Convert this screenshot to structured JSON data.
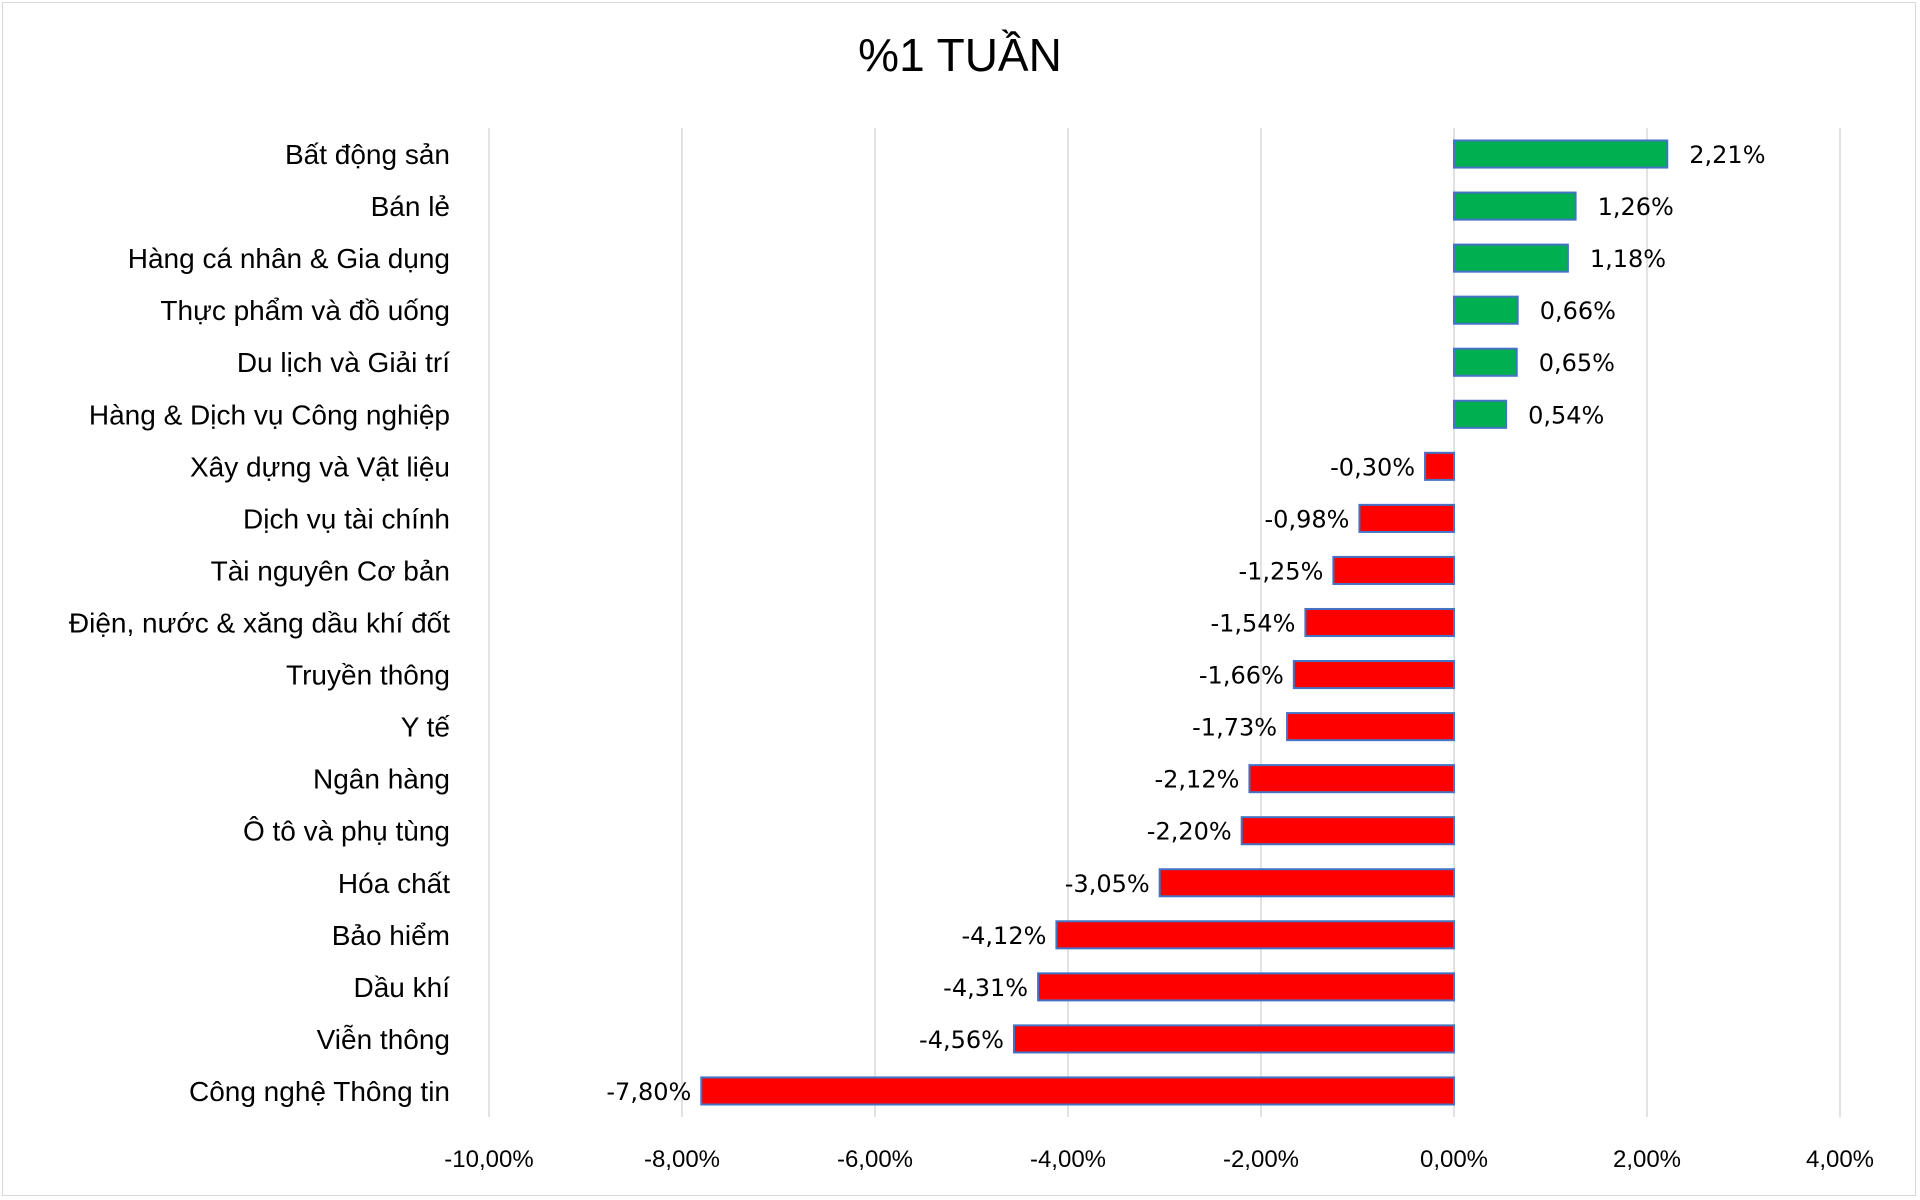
{
  "chart_data": {
    "type": "bar",
    "orientation": "horizontal",
    "title": "%1 TUẦN",
    "categories": [
      "Bất động sản",
      "Bán lẻ",
      "Hàng cá nhân & Gia dụng",
      "Thực phẩm và đồ uống",
      "Du lịch và Giải trí",
      "Hàng & Dịch vụ Công nghiệp",
      "Xây dựng và Vật liệu",
      "Dịch vụ tài chính",
      "Tài nguyên Cơ bản",
      "Điện, nước & xăng dầu khí đốt",
      "Truyền thông",
      "Y tế",
      "Ngân hàng",
      "Ô tô và phụ tùng",
      "Hóa chất",
      "Bảo hiểm",
      "Dầu khí",
      "Viễn thông",
      "Công nghệ Thông tin"
    ],
    "values": [
      2.21,
      1.26,
      1.18,
      0.66,
      0.65,
      0.54,
      -0.3,
      -0.98,
      -1.25,
      -1.54,
      -1.66,
      -1.73,
      -2.12,
      -2.2,
      -3.05,
      -4.12,
      -4.31,
      -4.56,
      -7.8
    ],
    "value_labels": [
      "2,21%",
      "1,26%",
      "1,18%",
      "0,66%",
      "0,65%",
      "0,54%",
      "-0,30%",
      "-0,98%",
      "-1,25%",
      "-1,54%",
      "-1,66%",
      "-1,73%",
      "-2,12%",
      "-2,20%",
      "-3,05%",
      "-4,12%",
      "-4,31%",
      "-4,56%",
      "-7,80%"
    ],
    "xlim": [
      -10,
      4
    ],
    "x_ticks": [
      -10,
      -8,
      -6,
      -4,
      -2,
      0,
      2,
      4
    ],
    "x_tick_labels": [
      "-10,00%",
      "-8,00%",
      "-6,00%",
      "-4,00%",
      "-2,00%",
      "0,00%",
      "2,00%",
      "4,00%"
    ],
    "grid": "vertical",
    "colors": {
      "positive": "#00b050",
      "negative": "#ff0000",
      "bar_border": "#4472c4",
      "grid": "#d9d9d9"
    }
  }
}
